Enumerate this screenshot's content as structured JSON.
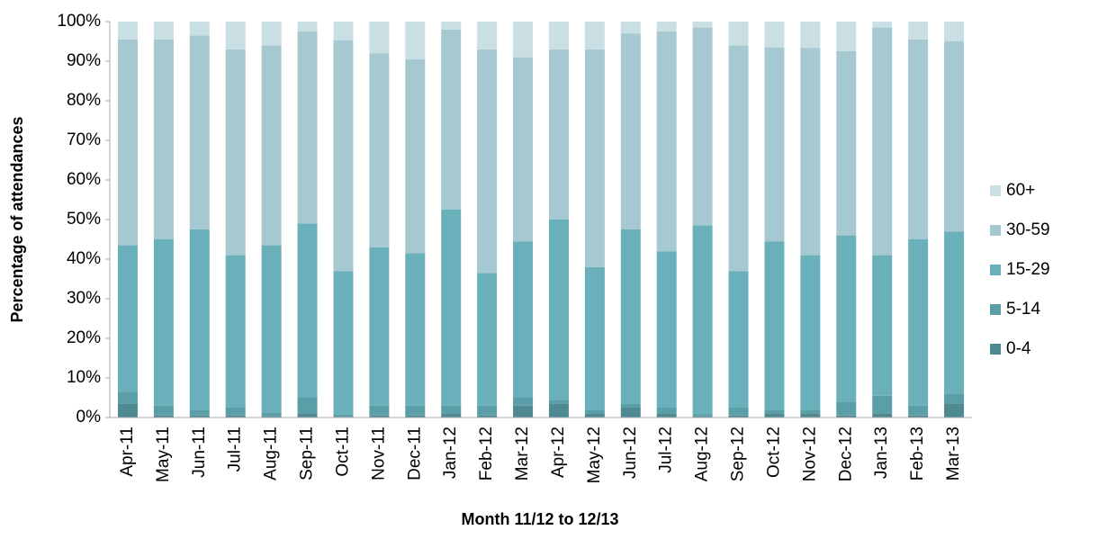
{
  "chart_data": {
    "type": "stacked_bar_100",
    "y_axis_label": "Percentage of attendances",
    "x_axis_label": "Month 11/12 to 12/13",
    "categories": [
      "Apr-11",
      "May-11",
      "Jun-11",
      "Jul-11",
      "Aug-11",
      "Sep-11",
      "Oct-11",
      "Nov-11",
      "Dec-11",
      "Jan-12",
      "Feb-12",
      "Mar-12",
      "Apr-12",
      "May-12",
      "Jun-12",
      "Jul-12",
      "Aug-12",
      "Sep-12",
      "Oct-12",
      "Nov-12",
      "Dec-12",
      "Jan-13",
      "Feb-13",
      "Mar-13"
    ],
    "series": [
      {
        "name": "0-4",
        "color": "#4f8a93",
        "values": [
          3.5,
          0.5,
          0.5,
          0.5,
          0.3,
          1,
          0.2,
          0.5,
          0.5,
          1,
          0.5,
          3,
          3.5,
          1,
          2.5,
          1,
          0.3,
          0.5,
          1,
          1,
          0.5,
          1,
          0.5,
          3.5
        ]
      },
      {
        "name": "5-14",
        "color": "#5b9ea8",
        "values": [
          3,
          2.5,
          1.5,
          2,
          1,
          4,
          0.5,
          2.5,
          2.5,
          2,
          2.5,
          2,
          1,
          1,
          1,
          1.5,
          0.5,
          2,
          1,
          1,
          3.5,
          4.5,
          2.5,
          2.5
        ]
      },
      {
        "name": "15-29",
        "color": "#6ab0ba",
        "values": [
          37,
          42,
          45.5,
          38.5,
          42.2,
          44,
          36.3,
          40,
          38.5,
          49.5,
          33.5,
          39.5,
          45.5,
          36,
          44,
          39.5,
          47.7,
          34.5,
          42.5,
          39,
          42,
          35.5,
          42,
          41
        ]
      },
      {
        "name": "30-59",
        "color": "#a6c8d0",
        "values": [
          52,
          50.5,
          49,
          52,
          50.5,
          48.5,
          58.3,
          49,
          49,
          45.5,
          56.5,
          46.5,
          43,
          55,
          49.5,
          55.5,
          50,
          57,
          49,
          52.3,
          46.5,
          57.5,
          50.5,
          48
        ]
      },
      {
        "name": "60+",
        "color": "#c9dfe4",
        "values": [
          4.5,
          4.5,
          3.5,
          7,
          6,
          2.5,
          4.7,
          8,
          9.5,
          2,
          7,
          9,
          7,
          7,
          3,
          2.5,
          1.5,
          6,
          6.5,
          6.7,
          7.5,
          1.5,
          4.5,
          5
        ]
      }
    ],
    "ylim": [
      0,
      100
    ],
    "yticks": [
      {
        "value": 0,
        "label": "0%"
      },
      {
        "value": 10,
        "label": "10%"
      },
      {
        "value": 20,
        "label": "20%"
      },
      {
        "value": 30,
        "label": "30%"
      },
      {
        "value": 40,
        "label": "40%"
      },
      {
        "value": 50,
        "label": "50%"
      },
      {
        "value": 60,
        "label": "60%"
      },
      {
        "value": 70,
        "label": "70%"
      },
      {
        "value": 80,
        "label": "80%"
      },
      {
        "value": 90,
        "label": "90%"
      },
      {
        "value": 100,
        "label": "100%"
      }
    ],
    "grid": false,
    "legend": "right"
  }
}
